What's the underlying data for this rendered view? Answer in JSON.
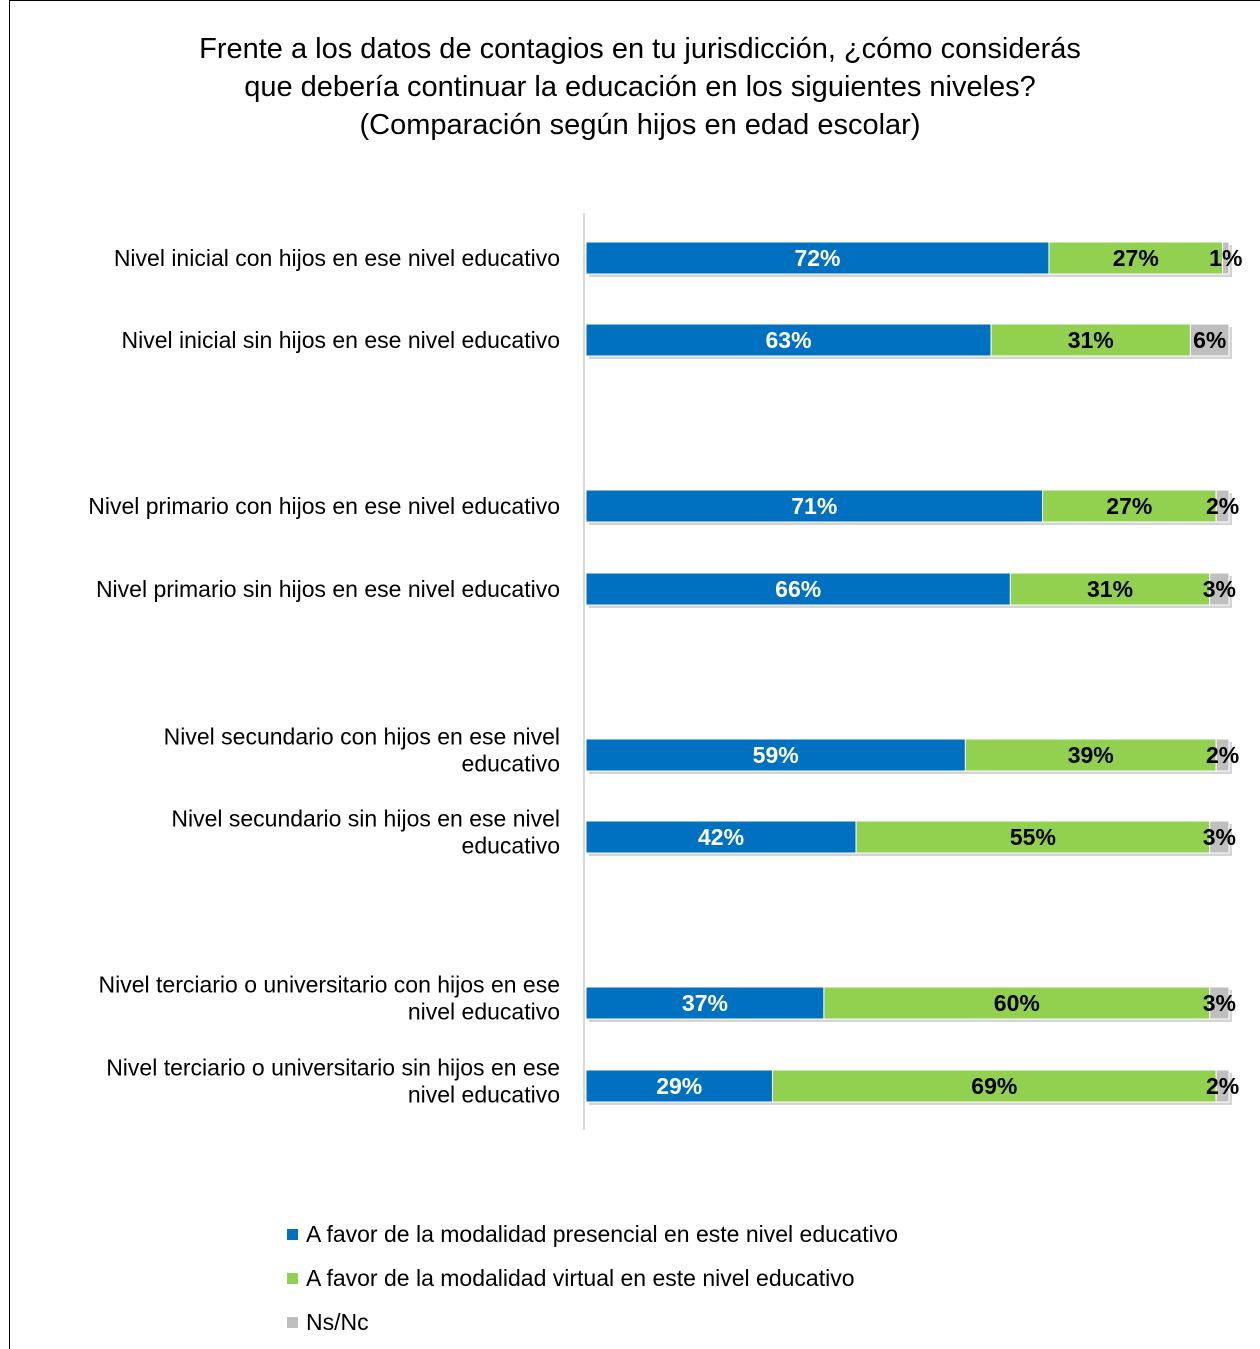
{
  "title": {
    "line1": "Frente a los datos de contagios en tu jurisdicción, ¿cómo considerás",
    "line2": "que debería continuar la educación en los siguientes niveles?",
    "line3": "(Comparación según hijos en edad escolar)"
  },
  "colors": {
    "presencial": "#0070C0",
    "virtual": "#92D050",
    "nsnc": "#BFBFBF",
    "axis": "#D9D9D9"
  },
  "chart_data": {
    "type": "bar",
    "orientation": "horizontal",
    "stacked": true,
    "percent": true,
    "xlim": [
      0,
      100
    ],
    "grid": false,
    "legend_position": "bottom",
    "categories": [
      [
        "Nivel inicial con hijos en ese nivel educativo"
      ],
      [
        "Nivel inicial sin hijos en ese nivel educativo"
      ],
      [
        "Nivel primario con hijos en ese nivel educativo"
      ],
      [
        "Nivel primario sin hijos en ese nivel educativo"
      ],
      [
        "Nivel secundario con hijos en ese nivel",
        "educativo"
      ],
      [
        "Nivel secundario sin hijos en ese nivel",
        "educativo"
      ],
      [
        "Nivel terciario o universitario con hijos en ese",
        "nivel educativo"
      ],
      [
        "Nivel terciario o universitario sin hijos en ese",
        "nivel educativo"
      ]
    ],
    "series": [
      {
        "name": "A favor de la modalidad presencial en este nivel educativo",
        "values": [
          72,
          63,
          71,
          66,
          59,
          42,
          37,
          29
        ],
        "labels": [
          "72%",
          "63%",
          "71%",
          "66%",
          "59%",
          "42%",
          "37%",
          "29%"
        ]
      },
      {
        "name": "A favor de la modalidad virtual en este nivel educativo",
        "values": [
          27,
          31,
          27,
          31,
          39,
          55,
          60,
          69
        ],
        "labels": [
          "27%",
          "31%",
          "27%",
          "31%",
          "39%",
          "55%",
          "60%",
          "69%"
        ]
      },
      {
        "name": "Ns/Nc",
        "values": [
          1,
          6,
          2,
          3,
          2,
          3,
          3,
          2
        ],
        "labels": [
          "1%",
          "6%",
          "2%",
          "3%",
          "2%",
          "3%",
          "3%",
          "2%"
        ]
      }
    ]
  }
}
